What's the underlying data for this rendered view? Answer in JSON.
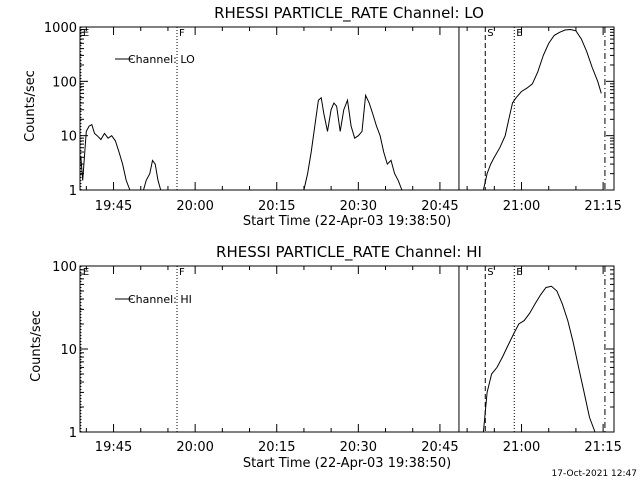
{
  "footer": {
    "timestamp": "17-Oct-2021 12:47"
  },
  "chart_data": [
    {
      "type": "line",
      "title": "RHESSI PARTICLE_RATE Channel: LO",
      "xlabel": "Start Time (22-Apr-03 19:38:50)",
      "ylabel": "Counts/sec",
      "yscale": "log",
      "ylim": [
        1,
        1000
      ],
      "xlim": [
        "19:38:50",
        "21:17:00"
      ],
      "ytick_labels": [
        "1",
        "10",
        "100",
        "1000"
      ],
      "xtick_labels": [
        "19:45",
        "20:00",
        "20:15",
        "20:30",
        "20:45",
        "21:00",
        "21:15"
      ],
      "legend": "Channel: LO",
      "markers": [
        {
          "label": "E",
          "time": "19:39:00",
          "style": "dotted"
        },
        {
          "label": "F",
          "time": "19:56:40",
          "style": "dotted"
        },
        {
          "label": "",
          "time": "20:48:30",
          "style": "solid"
        },
        {
          "label": "S",
          "time": "20:53:20",
          "style": "dashed"
        },
        {
          "label": "E",
          "time": "20:58:40",
          "style": "dotted"
        },
        {
          "label": "",
          "time": "21:15:20",
          "style": "dashdot"
        }
      ],
      "series": [
        {
          "name": "Channel: LO",
          "segments": [
            {
              "x": [
                "19:39:00",
                "19:39:20",
                "19:40:00",
                "19:40:30",
                "19:41:00",
                "19:41:30",
                "19:42:00",
                "19:42:40",
                "19:43:20",
                "19:44:00",
                "19:44:40",
                "19:45:20",
                "19:46:00",
                "19:46:40",
                "19:47:20",
                "19:48:00"
              ],
              "y": [
                4,
                1.5,
                12,
                15,
                16,
                11,
                10,
                8.5,
                11,
                9,
                10,
                8,
                5,
                3,
                1.5,
                1
              ]
            },
            {
              "x": [
                "19:50:30",
                "19:51:00",
                "19:51:40",
                "19:52:10",
                "19:52:40",
                "19:53:10",
                "19:53:40"
              ],
              "y": [
                1,
                1.5,
                2,
                3.5,
                3,
                1.5,
                1
              ]
            },
            {
              "x": [
                "20:20:00",
                "20:20:40",
                "20:21:20",
                "20:22:00",
                "20:22:40",
                "20:23:10",
                "20:23:40",
                "20:24:20",
                "20:25:00",
                "20:25:30",
                "20:26:00",
                "20:26:40",
                "20:27:20",
                "20:28:00",
                "20:28:40",
                "20:29:20",
                "20:30:00",
                "20:30:40",
                "20:31:20",
                "20:32:00",
                "20:32:40",
                "20:33:20",
                "20:34:00",
                "20:34:40",
                "20:35:20",
                "20:36:00",
                "20:36:40",
                "20:37:20",
                "20:38:00"
              ],
              "y": [
                1,
                2,
                5,
                15,
                45,
                50,
                25,
                12,
                30,
                40,
                35,
                12,
                30,
                45,
                15,
                9,
                10,
                12,
                55,
                40,
                25,
                15,
                10,
                5,
                3,
                3.5,
                2,
                1.5,
                1
              ]
            },
            {
              "x": [
                "20:53:00",
                "20:53:40",
                "20:54:20",
                "20:55:00",
                "20:56:00",
                "20:57:00",
                "20:57:40",
                "20:58:20",
                "20:59:00",
                "21:00:00",
                "21:01:00",
                "21:02:00",
                "21:03:00",
                "21:04:00",
                "21:05:00",
                "21:06:00",
                "21:07:00",
                "21:08:00",
                "21:09:00",
                "21:10:00",
                "21:11:00",
                "21:12:00",
                "21:13:00",
                "21:14:00",
                "21:14:40"
              ],
              "y": [
                1,
                2,
                3,
                4,
                6,
                10,
                20,
                40,
                50,
                65,
                75,
                90,
                150,
                300,
                500,
                700,
                800,
                880,
                900,
                850,
                600,
                350,
                180,
                100,
                60
              ]
            }
          ]
        }
      ]
    },
    {
      "type": "line",
      "title": "RHESSI PARTICLE_RATE Channel: HI",
      "xlabel": "Start Time (22-Apr-03 19:38:50)",
      "ylabel": "Counts/sec",
      "yscale": "log",
      "ylim": [
        1,
        100
      ],
      "xlim": [
        "19:38:50",
        "21:17:00"
      ],
      "ytick_labels": [
        "1",
        "10",
        "100"
      ],
      "xtick_labels": [
        "19:45",
        "20:00",
        "20:15",
        "20:30",
        "20:45",
        "21:00",
        "21:15"
      ],
      "legend": "Channel: HI",
      "markers": [
        {
          "label": "E",
          "time": "19:39:00",
          "style": "dotted"
        },
        {
          "label": "F",
          "time": "19:56:40",
          "style": "dotted"
        },
        {
          "label": "",
          "time": "20:48:30",
          "style": "solid"
        },
        {
          "label": "S",
          "time": "20:53:20",
          "style": "dashed"
        },
        {
          "label": "E",
          "time": "20:58:40",
          "style": "dotted"
        },
        {
          "label": "",
          "time": "21:15:20",
          "style": "dashdot"
        }
      ],
      "series": [
        {
          "name": "Channel: HI",
          "segments": [
            {
              "x": [
                "20:53:00",
                "20:53:40",
                "20:54:30",
                "20:55:30",
                "20:56:30",
                "20:57:30",
                "20:58:30",
                "20:59:30",
                "21:00:30",
                "21:01:30",
                "21:02:30",
                "21:03:30",
                "21:04:30",
                "21:05:30",
                "21:06:30",
                "21:07:30",
                "21:08:30",
                "21:09:30",
                "21:10:30",
                "21:11:30",
                "21:12:30",
                "21:13:30"
              ],
              "y": [
                1,
                3,
                5,
                6,
                8,
                11,
                15,
                20,
                22,
                27,
                35,
                45,
                55,
                57,
                50,
                35,
                22,
                12,
                6,
                3,
                1.5,
                1
              ]
            }
          ]
        }
      ]
    }
  ]
}
